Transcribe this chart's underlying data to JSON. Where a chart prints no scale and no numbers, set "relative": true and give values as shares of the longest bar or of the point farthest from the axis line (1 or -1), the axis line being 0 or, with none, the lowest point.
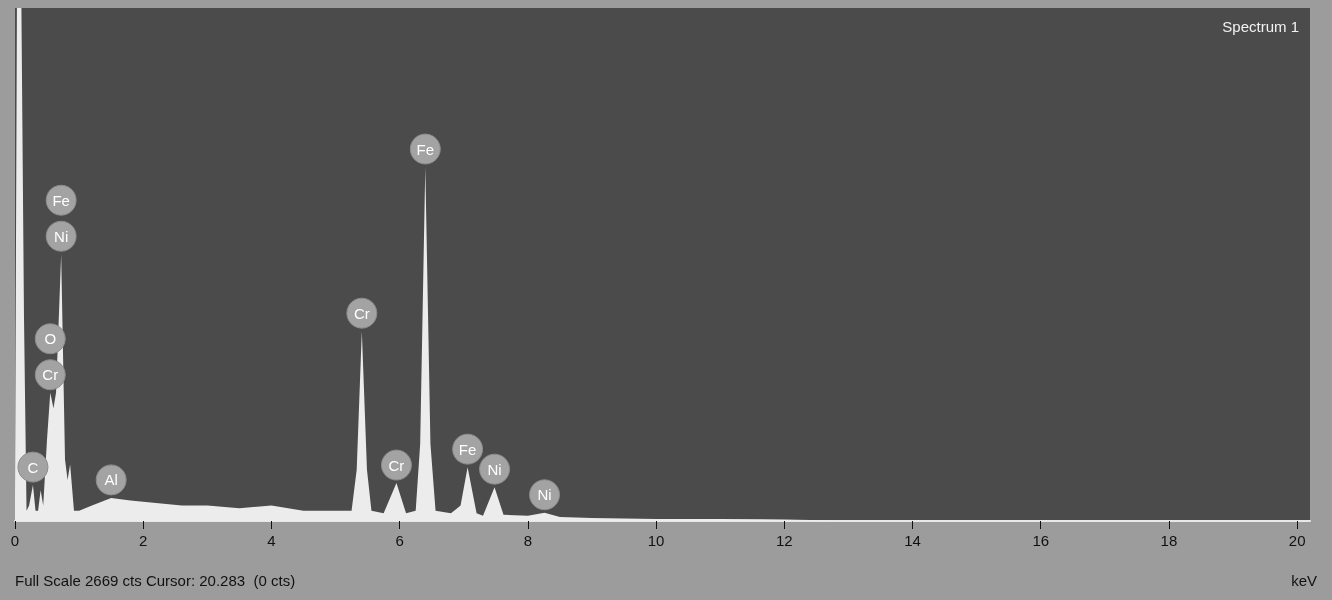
{
  "chart_data": {
    "type": "area",
    "relative": true,
    "xlabel": "keV",
    "xlim": [
      0,
      20.2
    ],
    "xticks": [
      0,
      2,
      4,
      6,
      8,
      10,
      12,
      14,
      16,
      18,
      20
    ],
    "grid": false,
    "marker": "none",
    "x": [
      0,
      0.03,
      0.1,
      0.14,
      0.18,
      0.22,
      0.28,
      0.32,
      0.36,
      0.4,
      0.44,
      0.5,
      0.55,
      0.6,
      0.64,
      0.72,
      0.78,
      0.82,
      0.86,
      0.92,
      1.0,
      1.2,
      1.5,
      1.8,
      2.2,
      2.6,
      3.0,
      3.5,
      4.0,
      4.5,
      5.0,
      5.25,
      5.33,
      5.41,
      5.49,
      5.56,
      5.75,
      5.95,
      6.1,
      6.25,
      6.32,
      6.4,
      6.48,
      6.56,
      6.8,
      6.95,
      7.06,
      7.2,
      7.3,
      7.48,
      7.62,
      8.0,
      8.26,
      8.5,
      9,
      10,
      11,
      12,
      12.4,
      13,
      20
    ],
    "series": [
      {
        "color": "#ececec",
        "values": [
          0.05,
          1,
          1,
          0.4,
          0.02,
          0.03,
          0.07,
          0.02,
          0.02,
          0.06,
          0.03,
          0.16,
          0.25,
          0.22,
          0.25,
          0.52,
          0.12,
          0.08,
          0.11,
          0.02,
          0.02,
          0.03,
          0.045,
          0.04,
          0.035,
          0.03,
          0.03,
          0.025,
          0.03,
          0.02,
          0.02,
          0.02,
          0.1,
          0.37,
          0.1,
          0.02,
          0.015,
          0.074,
          0.015,
          0.02,
          0.15,
          0.69,
          0.15,
          0.02,
          0.015,
          0.03,
          0.105,
          0.015,
          0.01,
          0.066,
          0.012,
          0.01,
          0.016,
          0.008,
          0.006,
          0.004,
          0.004,
          0.003,
          0.002,
          0,
          0
        ]
      }
    ],
    "annotations": [
      "Spectrum 1",
      "Full Scale 2669 cts Cursor: 20.283  (0 cts)",
      {
        "text": "C",
        "x": 0.28,
        "y": 0.07
      },
      {
        "text": "Cr",
        "x": 0.55,
        "y": 0.25
      },
      "O",
      {
        "text": "Ni",
        "x": 0.72,
        "y": 0.52
      },
      "Fe",
      {
        "text": "Al",
        "x": 1.5,
        "y": 0.045
      },
      {
        "text": "Cr",
        "x": 5.41,
        "y": 0.37
      },
      {
        "text": "Cr",
        "x": 5.95,
        "y": 0.074
      },
      {
        "text": "Fe",
        "x": 6.4,
        "y": 0.69
      },
      {
        "text": "Fe",
        "x": 7.06,
        "y": 0.105
      },
      {
        "text": "Ni",
        "x": 7.48,
        "y": 0.066
      },
      {
        "text": "Ni",
        "x": 8.26,
        "y": 0.016
      }
    ]
  }
}
